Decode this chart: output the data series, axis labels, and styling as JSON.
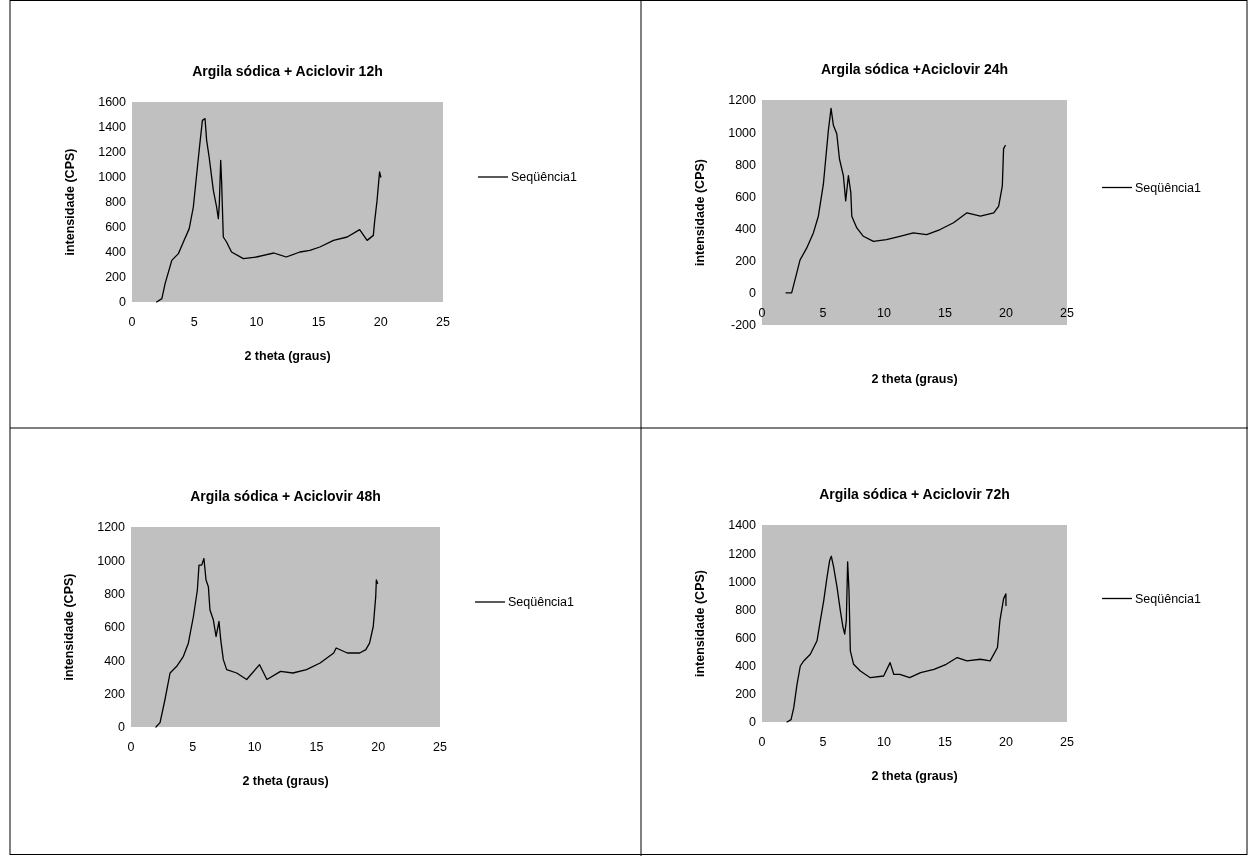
{
  "chart_data": [
    {
      "type": "line",
      "title": "Argila sódica + Aciclovir 12h",
      "xlabel": "2 theta (graus)",
      "ylabel": "intensidade (CPS)",
      "xlim": [
        0,
        25
      ],
      "xticks": [
        0,
        5,
        10,
        15,
        20,
        25
      ],
      "ylim": [
        0,
        1600
      ],
      "yticks": [
        0,
        200,
        400,
        600,
        800,
        1000,
        1200,
        1400,
        1600
      ],
      "legend": "right",
      "grid": false,
      "marker": "none",
      "line_style": "solid",
      "x": [
        1.98,
        2.4,
        2.66,
        3.2,
        3.73,
        4.13,
        4.6,
        4.93,
        5.26,
        5.47,
        5.66,
        5.87,
        6.0,
        6.2,
        6.54,
        6.8,
        6.94,
        7.02,
        7.13,
        7.2,
        7.34,
        7.6,
        8.0,
        8.95,
        10.0,
        11.4,
        12.4,
        13.5,
        14.3,
        15.1,
        16.2,
        17.3,
        18.3,
        18.9,
        19.4,
        19.5,
        19.7,
        19.9,
        20.0
      ],
      "series": [
        {
          "name": "Seqüência1",
          "color": "#000000",
          "values": [
            0,
            27,
            147,
            333,
            387,
            480,
            587,
            760,
            1080,
            1280,
            1453,
            1467,
            1293,
            1160,
            893,
            760,
            667,
            787,
            1133,
            973,
            520,
            480,
            400,
            347,
            360,
            392,
            360,
            400,
            413,
            440,
            493,
            520,
            579,
            493,
            533,
            640,
            813,
            1040,
            1000
          ]
        }
      ]
    },
    {
      "type": "line",
      "title": "Argila sódica +Aciclovir 24h",
      "xlabel": "2 theta (graus)",
      "ylabel": "intensidade (CPS)",
      "xlim": [
        0,
        25
      ],
      "xticks": [
        0,
        5,
        10,
        15,
        20,
        25
      ],
      "ylim": [
        -200,
        1200
      ],
      "yticks": [
        -200,
        0,
        200,
        400,
        600,
        800,
        1000,
        1200
      ],
      "legend": "right",
      "grid": false,
      "marker": "none",
      "line_style": "solid",
      "x": [
        1.97,
        2.43,
        2.84,
        3.12,
        3.66,
        4.21,
        4.62,
        5.03,
        5.44,
        5.66,
        5.85,
        6.13,
        6.35,
        6.67,
        6.86,
        7.08,
        7.28,
        7.36,
        7.77,
        8.31,
        9.13,
        10.2,
        11.3,
        12.4,
        13.5,
        14.6,
        15.7,
        16.8,
        17.9,
        19.0,
        19.4,
        19.7,
        19.8,
        19.94
      ],
      "series": [
        {
          "name": "Seqüência1",
          "color": "#000000",
          "values": [
            0,
            0,
            121,
            205,
            278,
            373,
            477,
            676,
            1011,
            1148,
            1043,
            990,
            833,
            729,
            572,
            729,
            624,
            477,
            404,
            352,
            320,
            331,
            352,
            373,
            362,
            394,
            436,
            498,
            477,
            498,
            540,
            666,
            896,
            917
          ]
        }
      ]
    },
    {
      "type": "line",
      "title": "Argila sódica + Aciclovir 48h",
      "xlabel": "2 theta (graus)",
      "ylabel": "intensidade (CPS)",
      "xlim": [
        0,
        25
      ],
      "xticks": [
        0,
        5,
        10,
        15,
        20,
        25
      ],
      "ylim": [
        0,
        1200
      ],
      "yticks": [
        0,
        200,
        400,
        600,
        800,
        1000,
        1200
      ],
      "legend": "right",
      "grid": false,
      "marker": "none",
      "line_style": "solid",
      "x": [
        2.02,
        2.35,
        2.75,
        3.16,
        3.7,
        4.24,
        4.64,
        5.05,
        5.37,
        5.5,
        5.72,
        5.9,
        6.07,
        6.26,
        6.39,
        6.66,
        6.88,
        7.12,
        7.26,
        7.47,
        7.74,
        8.55,
        9.36,
        10.4,
        11.0,
        12.1,
        13.1,
        14.2,
        15.3,
        16.4,
        16.6,
        17.5,
        18.5,
        19.0,
        19.3,
        19.6,
        19.8,
        19.85,
        19.95
      ],
      "series": [
        {
          "name": "Seqüência1",
          "color": "#000000",
          "values": [
            0,
            26,
            165,
            324,
            364,
            424,
            503,
            663,
            822,
            971,
            971,
            1011,
            882,
            842,
            702,
            643,
            543,
            633,
            523,
            404,
            344,
            324,
            285,
            374,
            285,
            334,
            324,
            344,
            384,
            444,
            474,
            444,
            444,
            464,
            503,
            603,
            782,
            882,
            862
          ]
        }
      ]
    },
    {
      "type": "line",
      "title": "Argila sódica + Aciclovir 72h",
      "xlabel": "2 theta (graus)",
      "ylabel": "intensidade (CPS)",
      "xlim": [
        0,
        25
      ],
      "xticks": [
        0,
        5,
        10,
        15,
        20,
        25
      ],
      "ylim": [
        0,
        1400
      ],
      "yticks": [
        0,
        200,
        400,
        600,
        800,
        1000,
        1200,
        1400
      ],
      "legend": "right",
      "grid": false,
      "marker": "none",
      "line_style": "solid",
      "x": [
        2.05,
        2.38,
        2.6,
        2.87,
        3.14,
        3.42,
        3.96,
        4.51,
        4.78,
        5.06,
        5.33,
        5.55,
        5.68,
        5.87,
        6.15,
        6.42,
        6.64,
        6.78,
        6.91,
        7.02,
        7.13,
        7.24,
        7.51,
        8.06,
        8.88,
        9.97,
        10.5,
        10.8,
        11.3,
        12.1,
        13.0,
        14.1,
        15.1,
        16.0,
        16.8,
        17.9,
        18.7,
        19.3,
        19.5,
        19.8,
        19.99,
        20.0
      ],
      "series": [
        {
          "name": "Seqüência1",
          "color": "#000000",
          "values": [
            0,
            17,
            100,
            267,
            398,
            434,
            482,
            577,
            720,
            863,
            1030,
            1150,
            1178,
            1102,
            959,
            792,
            673,
            625,
            720,
            1138,
            935,
            506,
            410,
            363,
            315,
            327,
            422,
            339,
            339,
            315,
            351,
            374,
            410,
            458,
            434,
            446,
            434,
            529,
            720,
            875,
            911,
            828
          ]
        }
      ]
    }
  ]
}
